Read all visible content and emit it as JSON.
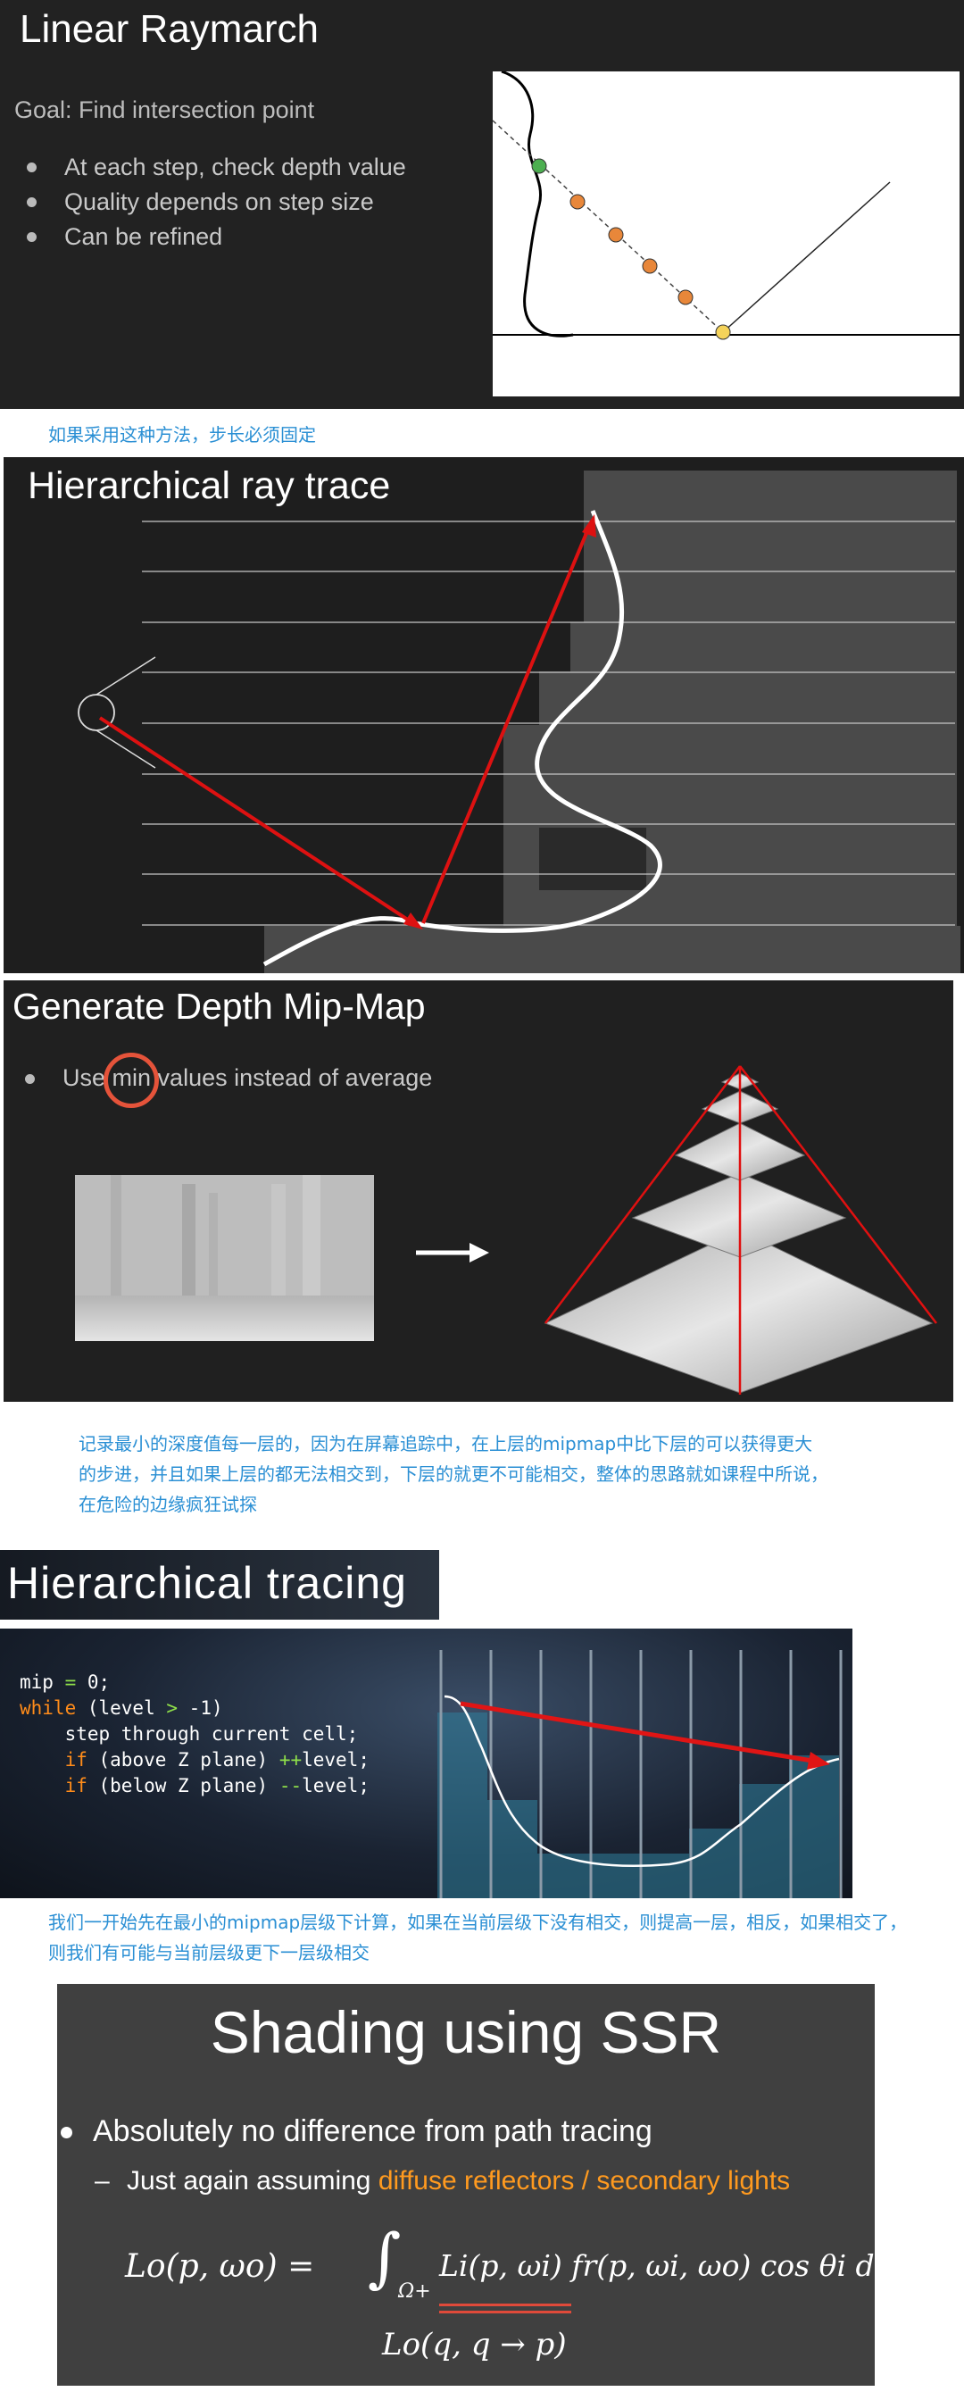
{
  "slide1": {
    "title": "Linear Raymarch",
    "goal": "Goal: Find intersection point",
    "bullets": [
      "At each step, check depth value",
      "Quality depends on step size",
      "Can be refined"
    ]
  },
  "note1": "如果采用这种方法，步长必须固定",
  "slide2": {
    "title": "Hierarchical ray trace"
  },
  "slide3": {
    "title": "Generate Depth Mip-Map",
    "bullet_prefix": "Use ",
    "bullet_highlight": "min",
    "bullet_suffix": " values instead of average"
  },
  "note2": "记录最小的深度值每一层的，因为在屏幕追踪中，在上层的mipmap中比下层的可以获得更大的步进，并且如果上层的都无法相交到，下层的就更不可能相交，整体的思路就如课程中所说，在危险的边缘疯狂试探",
  "slide4": {
    "title": "Hierarchical tracing",
    "code": {
      "l1_a": "mip ",
      "l1_op": "=",
      "l1_b": " 0;",
      "l2_kw": "while",
      "l2_a": " (level ",
      "l2_op": ">",
      "l2_b": " -1)",
      "l3": "    step through current cell;",
      "l4_kw": "if",
      "l4_a": " (above Z plane) ",
      "l4_op": "++",
      "l4_b": "level;",
      "l5_kw": "if",
      "l5_a": " (below Z plane) ",
      "l5_op": "--",
      "l5_b": "level;"
    }
  },
  "note3": "我们一开始先在最小的mipmap层级下计算，如果在当前层级下没有相交，则提高一层，相反，如果相交了，则我们有可能与当前层级更下一层级相交",
  "slide5": {
    "title": "Shading using SSR",
    "bullet1": "Absolutely no difference from path tracing",
    "sub_prefix": "Just again assuming ",
    "sub_highlight": "diffuse reflectors / secondary lights",
    "eq_lhs": "Lo(p, ωo) =",
    "eq_rhs": "Li(p, ωi) fr(p, ωi, ωo) cos θi dωi",
    "eq_domain": "Ω+",
    "eq_sub": "Lo(q, q → p)"
  },
  "colors": {
    "slide_bg": "#222222",
    "note_blue": "#2a8fd4",
    "accent_orange": "#ff9a1f",
    "ray_red": "#dd1111",
    "circle_orange": "#e5533a"
  }
}
